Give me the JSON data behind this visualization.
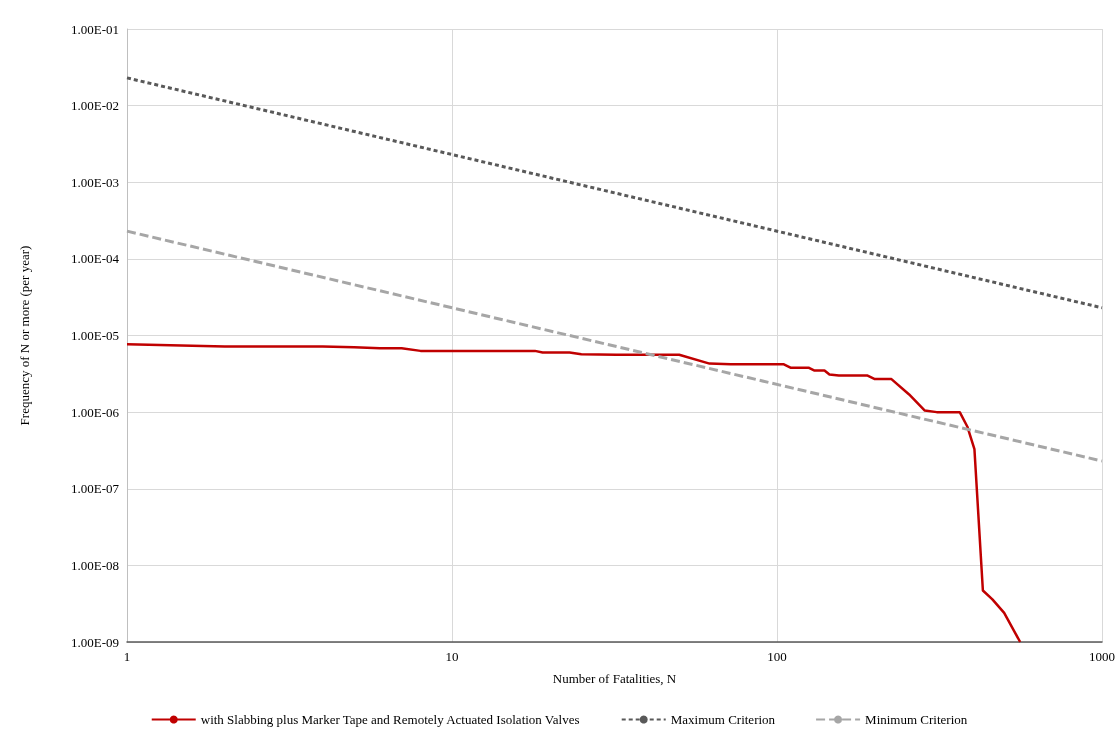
{
  "chart_data": {
    "type": "line",
    "xlabel": "Number of Fatalities, N",
    "ylabel": "Frequency of N or more (per year)",
    "log": "xy",
    "xlim": [
      1,
      1000
    ],
    "xticks": [
      1,
      10,
      100,
      1000
    ],
    "ylim": [
      1e-09,
      0.1
    ],
    "yticks": [
      {
        "value": 1e-09,
        "label": "1.00E-09"
      },
      {
        "value": 1e-08,
        "label": "1.00E-08"
      },
      {
        "value": 1e-07,
        "label": "1.00E-07"
      },
      {
        "value": 1e-06,
        "label": "1.00E-06"
      },
      {
        "value": 1e-05,
        "label": "1.00E-05"
      },
      {
        "value": 0.0001,
        "label": "1.00E-04"
      },
      {
        "value": 0.001,
        "label": "1.00E-03"
      },
      {
        "value": 0.01,
        "label": "1.00E-02"
      },
      {
        "value": 0.1,
        "label": "1.00E-01"
      }
    ],
    "grid": true,
    "legend": "bottom",
    "marker": "none",
    "series": [
      {
        "name": "with Slabbing plus Marker Tape and Remotely Actuated Isolation Valves",
        "color": "#c00000",
        "line_style": "solid",
        "x": [
          1,
          2,
          4,
          5,
          6,
          7,
          8,
          18,
          19,
          23,
          25,
          32,
          50,
          62,
          72,
          105,
          110,
          125,
          130,
          140,
          145,
          155,
          190,
          200,
          225,
          255,
          285,
          310,
          365,
          385,
          405,
          430,
          460,
          500,
          560
        ],
        "values": [
          7.7e-06,
          7.2e-06,
          7.2e-06,
          7e-06,
          6.8e-06,
          6.8e-06,
          6.3e-06,
          6.3e-06,
          6e-06,
          6e-06,
          5.7e-06,
          5.6e-06,
          5.6e-06,
          4.3e-06,
          4.2e-06,
          4.2e-06,
          3.8e-06,
          3.8e-06,
          3.5e-06,
          3.5e-06,
          3.1e-06,
          3e-06,
          3e-06,
          2.7e-06,
          2.7e-06,
          1.7e-06,
          1.05e-06,
          1e-06,
          1e-06,
          6.5e-07,
          3.3e-07,
          4.7e-09,
          3.6e-09,
          2.4e-09,
          1e-09
        ]
      },
      {
        "name": "Maximum Criterion",
        "color": "#595959",
        "line_style": "dashed",
        "x": [
          1,
          1000
        ],
        "values": [
          0.023,
          2.3e-05
        ]
      },
      {
        "name": "Minimum Criterion",
        "color": "#a6a6a6",
        "line_style": "dashed",
        "x": [
          1,
          1000
        ],
        "values": [
          0.00023,
          2.3e-07
        ]
      }
    ]
  }
}
